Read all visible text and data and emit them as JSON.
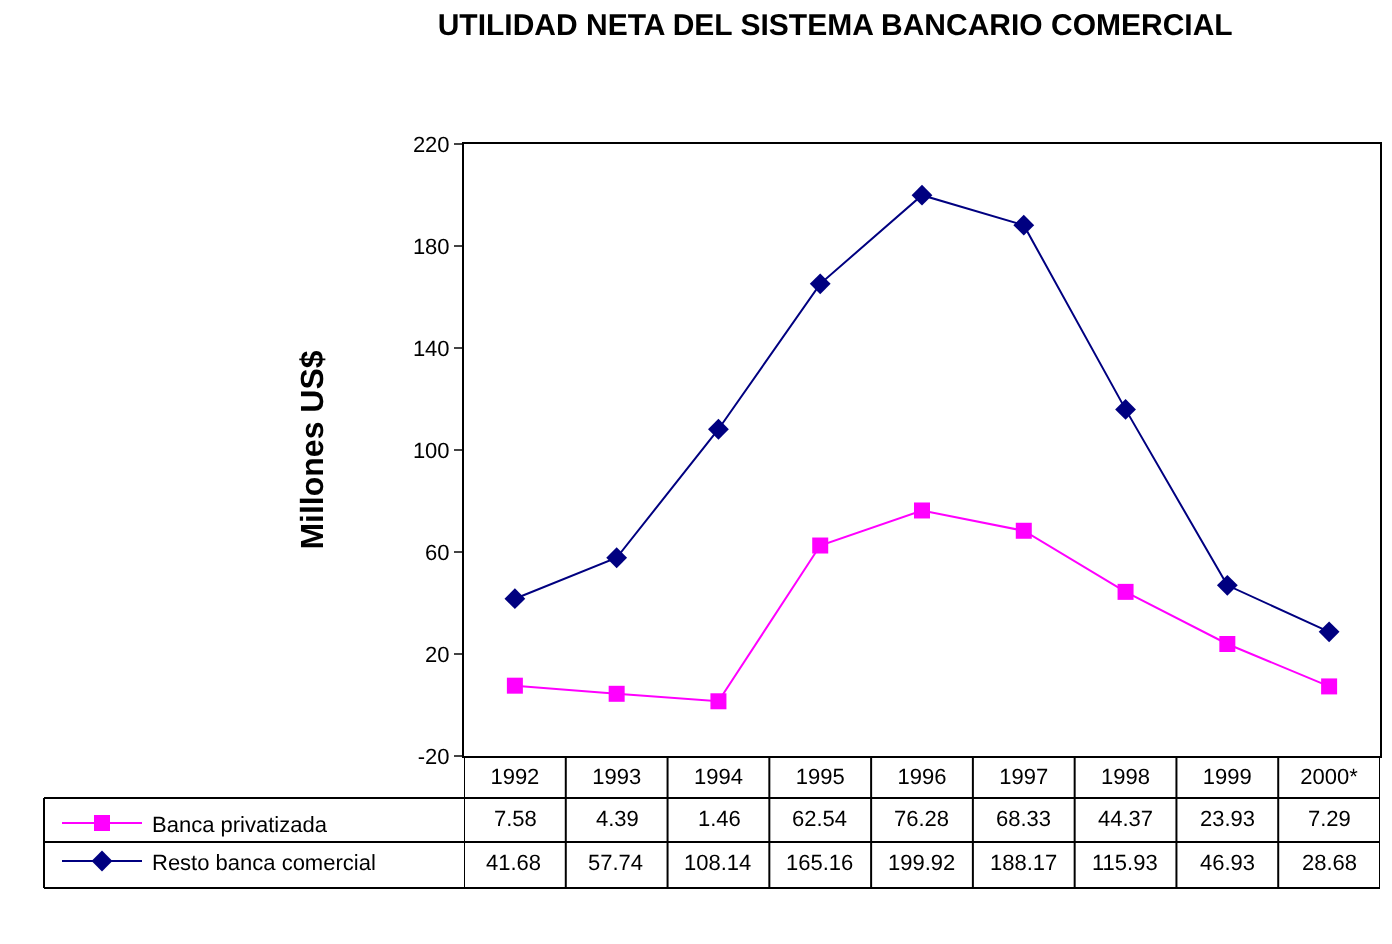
{
  "chart_data": {
    "type": "line",
    "title": "UTILIDAD NETA DEL SISTEMA BANCARIO COMERCIAL",
    "ylabel": "Millones US$",
    "categories": [
      "1992",
      "1993",
      "1994",
      "1995",
      "1996",
      "1997",
      "1998",
      "1999",
      "2000*"
    ],
    "series": [
      {
        "name": "Banca privatizada",
        "color": "#ff00ff",
        "marker": "square",
        "values": [
          7.58,
          4.39,
          1.46,
          62.54,
          76.28,
          68.33,
          44.37,
          23.93,
          7.29
        ]
      },
      {
        "name": "Resto banca comercial",
        "color": "#000080",
        "marker": "diamond",
        "values": [
          41.68,
          57.74,
          108.14,
          165.16,
          199.92,
          188.17,
          115.93,
          46.93,
          28.68
        ]
      }
    ],
    "ylim": [
      -20,
      220
    ],
    "yticks": [
      -20,
      20,
      60,
      100,
      140,
      180,
      220
    ],
    "legend": "bottom left",
    "data_labels": true,
    "line_style": "solid"
  }
}
